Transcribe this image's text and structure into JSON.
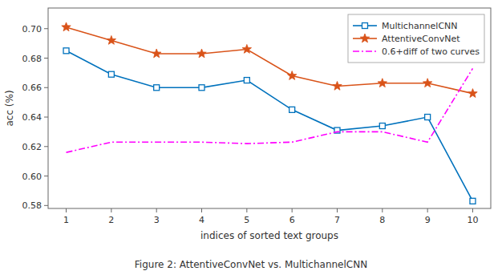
{
  "chart_data": {
    "type": "line",
    "caption": "Figure 2: AttentiveConvNet vs. MultichannelCNN",
    "x_label": "indices of sorted text groups",
    "y_label": "acc (%)",
    "x": [
      1,
      2,
      3,
      4,
      5,
      6,
      7,
      8,
      9,
      10
    ],
    "series": [
      {
        "name": "MultichannelCNN",
        "color": "#0072BD",
        "marker": "square",
        "line_style": "solid",
        "values": [
          0.685,
          0.669,
          0.66,
          0.66,
          0.665,
          0.645,
          0.631,
          0.634,
          0.64,
          0.583
        ]
      },
      {
        "name": "AttentiveConvNet",
        "color": "#D95319",
        "marker": "star",
        "line_style": "solid",
        "values": [
          0.701,
          0.692,
          0.683,
          0.683,
          0.686,
          0.668,
          0.661,
          0.663,
          0.663,
          0.656
        ]
      },
      {
        "name": "0.6+diff of two curves",
        "color": "#FF00FF",
        "marker": "none",
        "line_style": "dash-dot",
        "values": [
          0.616,
          0.623,
          0.623,
          0.623,
          0.622,
          0.623,
          0.63,
          0.63,
          0.623,
          0.673
        ]
      }
    ],
    "xlim": [
      0.6,
      10.4
    ],
    "ylim": [
      0.578,
      0.714
    ],
    "xticks": [
      1,
      2,
      3,
      4,
      5,
      6,
      7,
      8,
      9,
      10
    ],
    "yticks": [
      0.58,
      {
        "value": 0.6,
        "label": "0.60"
      },
      0.62,
      0.64,
      0.66,
      0.68,
      {
        "value": 0.7,
        "label": "0.70"
      }
    ],
    "grid": false,
    "legend": "upper right"
  }
}
